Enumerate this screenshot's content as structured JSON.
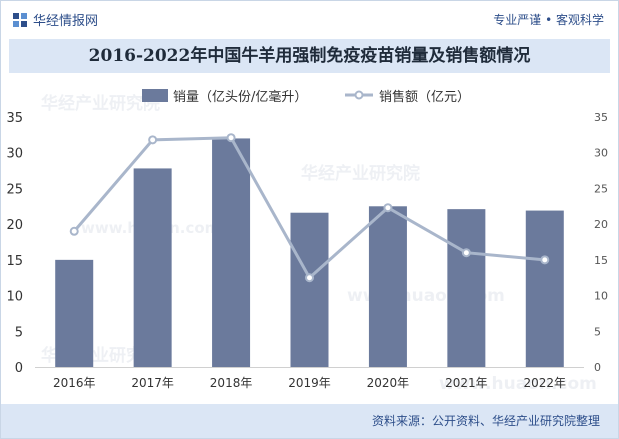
{
  "header": {
    "brand": "华经情报网",
    "slogan": "专业严谨 • 客观科学"
  },
  "watermarks": [
    "华经产业研究院",
    "www.huaon.com"
  ],
  "colors": {
    "bar": "#6b7a9c",
    "line": "#a9b6cb",
    "accent": "#2d4e8a",
    "title_bg": "#dbe6f5"
  },
  "chart_data": {
    "type": "bar",
    "title": "2016-2022年中国牛羊用强制免疫疫苗销量及销售额情况",
    "categories": [
      "2016年",
      "2017年",
      "2018年",
      "2019年",
      "2020年",
      "2021年",
      "2022年"
    ],
    "series": [
      {
        "name": "销量（亿头份/亿毫升）",
        "type": "bar",
        "axis": "left",
        "values": [
          15,
          27.8,
          32,
          21.6,
          22.5,
          22.1,
          21.9
        ]
      },
      {
        "name": "销售额（亿元）",
        "type": "line",
        "axis": "right",
        "values": [
          19,
          31.8,
          32.1,
          12.5,
          22.3,
          16,
          15
        ]
      }
    ],
    "y_left": {
      "min": 0,
      "max": 35,
      "ticks": [
        0,
        5,
        10,
        15,
        20,
        25,
        30,
        35
      ]
    },
    "y_right": {
      "min": 0,
      "max": 35,
      "ticks": [
        0,
        5,
        10,
        15,
        20,
        25,
        30,
        35
      ]
    },
    "legend_position": "top-center",
    "grid": false
  },
  "footer": {
    "source": "资料来源：公开资料、华经产业研究院整理"
  }
}
